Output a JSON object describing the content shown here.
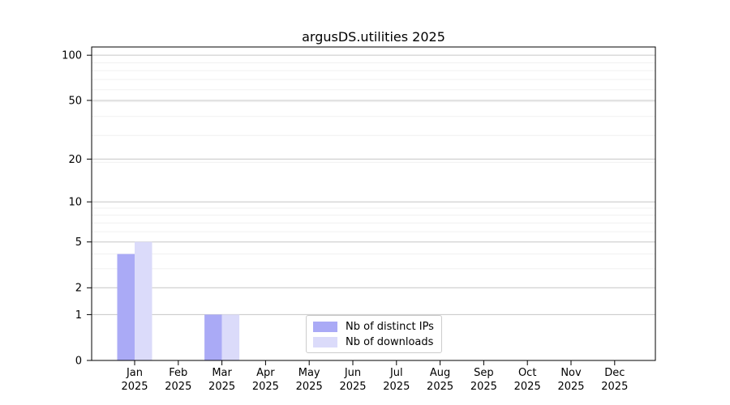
{
  "chart_data": {
    "type": "bar",
    "title": "argusDS.utilities 2025",
    "categories": [
      "Jan",
      "Feb",
      "Mar",
      "Apr",
      "May",
      "Jun",
      "Jul",
      "Aug",
      "Sep",
      "Oct",
      "Nov",
      "Dec"
    ],
    "category_year": "2025",
    "series": [
      {
        "name": "Nb of distinct IPs",
        "color": "#aaaaf6",
        "values": [
          4,
          0,
          1,
          0,
          0,
          0,
          0,
          0,
          0,
          0,
          0,
          0
        ]
      },
      {
        "name": "Nb of downloads",
        "color": "#dbdbfa",
        "values": [
          5,
          0,
          1,
          0,
          0,
          0,
          0,
          0,
          0,
          0,
          0,
          0
        ]
      }
    ],
    "yscale": "log1p",
    "ylim": [
      0,
      113.4
    ],
    "y_ticks": [
      0,
      1,
      2,
      5,
      10,
      20,
      50,
      100
    ],
    "y_minor_gridlines": [
      3,
      4,
      6,
      7,
      8,
      9,
      19,
      29,
      39,
      49,
      59,
      69,
      79,
      89
    ],
    "grid": {
      "major_color": "#c6c6c6",
      "minor_color": "#f0f0f0"
    },
    "axis_color": "#000000",
    "legend_position": "lower center"
  }
}
